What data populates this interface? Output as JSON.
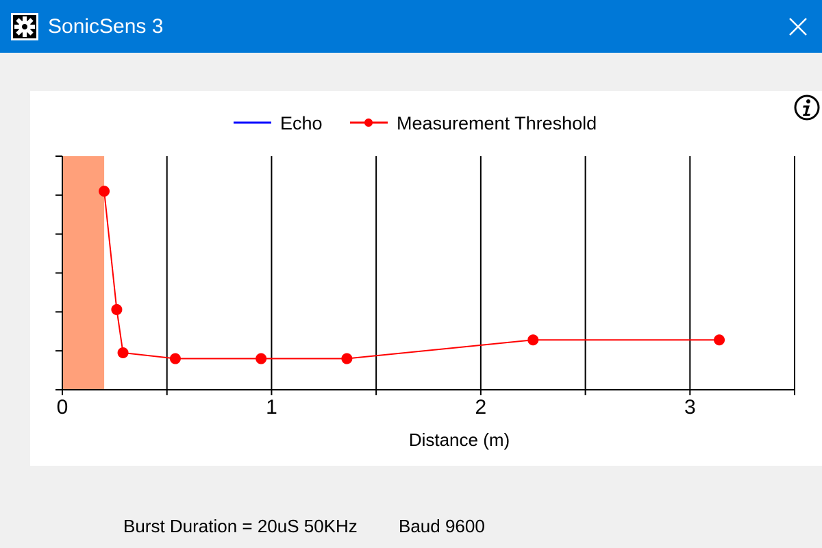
{
  "window": {
    "title": "SonicSens 3",
    "title_bar_color": "#0078d7",
    "icons": {
      "app": "app-gear-icon",
      "close": "close-icon",
      "info": "info-icon"
    }
  },
  "status": {
    "burst": "Burst Duration = 20uS 50KHz",
    "baud": "Baud 9600"
  },
  "chart_data": {
    "type": "line",
    "title": "",
    "xlabel": "Distance (m)",
    "ylabel": "",
    "xlim": [
      0,
      3.5
    ],
    "ylim": [
      0,
      6
    ],
    "x_ticks": [
      0,
      0.5,
      1,
      1.5,
      2,
      2.5,
      3,
      3.5
    ],
    "x_tick_labels": [
      "0",
      "1",
      "2",
      "3"
    ],
    "x_tick_label_values": [
      0,
      1,
      2,
      3
    ],
    "grid": true,
    "legend_position": "top-center",
    "dead_zone": {
      "x_start": 0,
      "x_end": 0.2,
      "color": "#ffa07a"
    },
    "series": [
      {
        "name": "Echo",
        "color": "#0000ff",
        "x": [],
        "y": []
      },
      {
        "name": "Measurement Threshold",
        "color": "#ff0000",
        "markers": true,
        "x": [
          0.2,
          0.26,
          0.29,
          0.54,
          0.95,
          1.36,
          2.25,
          3.14
        ],
        "y": [
          5.1,
          2.06,
          0.95,
          0.8,
          0.8,
          0.8,
          1.28,
          1.28
        ]
      }
    ]
  }
}
